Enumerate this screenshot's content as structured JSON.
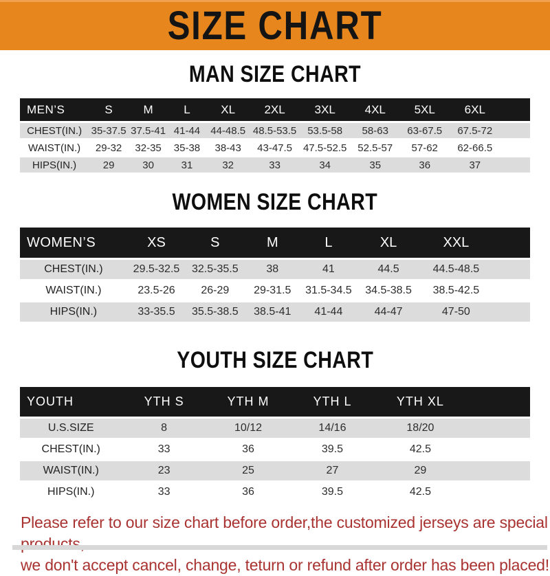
{
  "banner": {
    "title": "SIZE CHART",
    "bg_color": "#E8861E",
    "text_color": "#141414"
  },
  "sections": [
    {
      "id": "men",
      "title": "MAN SIZE CHART",
      "header_label": "MEN’S",
      "columns": [
        "S",
        "M",
        "L",
        "XL",
        "2XL",
        "3XL",
        "4XL",
        "5XL",
        "6XL"
      ],
      "rows": [
        {
          "label": "CHEST(IN.)",
          "values": [
            "35-37.5",
            "37.5-41",
            "41-44",
            "44-48.5",
            "48.5-53.5",
            "53.5-58",
            "58-63",
            "63-67.5",
            "67.5-72"
          ]
        },
        {
          "label": "WAIST(IN.)",
          "values": [
            "29-32",
            "32-35",
            "35-38",
            "38-43",
            "43-47.5",
            "47.5-52.5",
            "52.5-57",
            "57-62",
            "62-66.5"
          ]
        },
        {
          "label": "HIPS(IN.)",
          "values": [
            "29",
            "30",
            "31",
            "32",
            "33",
            "34",
            "35",
            "36",
            "37"
          ]
        }
      ]
    },
    {
      "id": "women",
      "title": "WOMEN SIZE CHART",
      "header_label": "WOMEN’S",
      "columns": [
        "XS",
        "S",
        "M",
        "L",
        "XL",
        "XXL"
      ],
      "rows": [
        {
          "label": "CHEST(IN.)",
          "values": [
            "29.5-32.5",
            "32.5-35.5",
            "38",
            "41",
            "44.5",
            "44.5-48.5"
          ]
        },
        {
          "label": "WAIST(IN.)",
          "values": [
            "23.5-26",
            "26-29",
            "29-31.5",
            "31.5-34.5",
            "34.5-38.5",
            "38.5-42.5"
          ]
        },
        {
          "label": "HIPS(IN.)",
          "values": [
            "33-35.5",
            "35.5-38.5",
            "38.5-41",
            "41-44",
            "44-47",
            "47-50"
          ]
        }
      ]
    },
    {
      "id": "youth",
      "title": "YOUTH SIZE CHART",
      "header_label": "YOUTH",
      "columns": [
        "YTH S",
        "YTH M",
        "YTH L",
        "YTH XL"
      ],
      "rows": [
        {
          "label": "U.S.SIZE",
          "values": [
            "8",
            "10/12",
            "14/16",
            "18/20"
          ]
        },
        {
          "label": "CHEST(IN.)",
          "values": [
            "33",
            "36",
            "39.5",
            "42.5"
          ]
        },
        {
          "label": "WAIST(IN.)",
          "values": [
            "23",
            "25",
            "27",
            "29"
          ]
        },
        {
          "label": "HIPS(IN.)",
          "values": [
            "33",
            "36",
            "39.5",
            "42.5"
          ]
        }
      ]
    }
  ],
  "footer": {
    "line1": "Please refer to our size chart before order,the customized jerseys are special products,",
    "line2": "we don't accept cancel, change, teturn or refund after order has been placed!",
    "text_color": "#A93331"
  },
  "colors": {
    "header_bar": "#181818",
    "row_gray": "#DCDCDC",
    "row_white": "#FFFFFF"
  }
}
